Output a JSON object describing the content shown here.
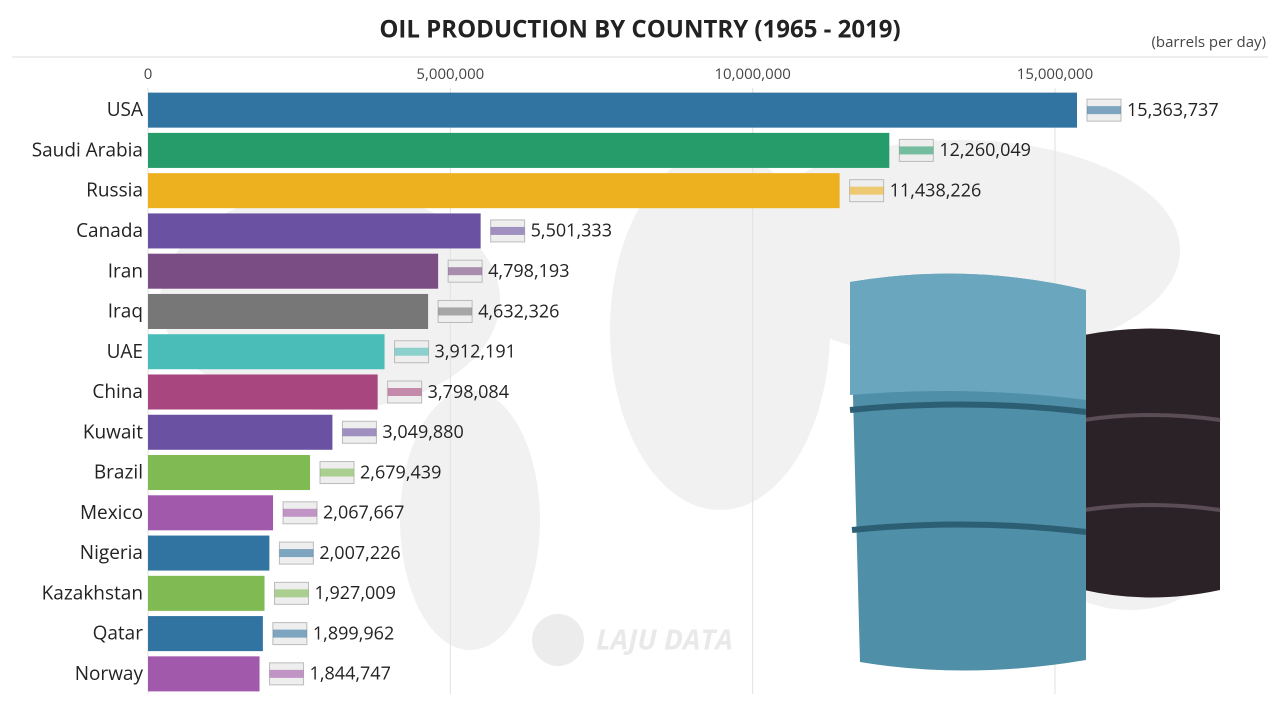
{
  "chart_data": {
    "type": "bar",
    "orientation": "horizontal",
    "title": "OIL PRODUCTION BY COUNTRY (1965 - 2019)",
    "subtitle": "(barrels per day)",
    "watermark": "LAJU DATA",
    "categories": [
      "USA",
      "Saudi Arabia",
      "Russia",
      "Canada",
      "Iran",
      "Iraq",
      "UAE",
      "China",
      "Kuwait",
      "Brazil",
      "Mexico",
      "Nigeria",
      "Kazakhstan",
      "Qatar",
      "Norway"
    ],
    "values": [
      15363737,
      12260049,
      11438226,
      5501333,
      4798193,
      4632326,
      3912191,
      3798084,
      3049880,
      2679439,
      2067667,
      2007226,
      1927009,
      1899962,
      1844747
    ],
    "value_labels": [
      "15,363,737",
      "12,260,049",
      "11,438,226",
      "5,501,333",
      "4,798,193",
      "4,632,326",
      "3,912,191",
      "3,798,084",
      "3,049,880",
      "2,679,439",
      "2,067,667",
      "2,007,226",
      "1,927,009",
      "1,899,962",
      "1,844,747"
    ],
    "colors": [
      "#3274a1",
      "#259c6a",
      "#edb120",
      "#6b51a1",
      "#7a4d84",
      "#777777",
      "#4bbdb8",
      "#a8477f",
      "#6b51a1",
      "#7fba52",
      "#a15aab",
      "#3274a1",
      "#7fba52",
      "#3274a1",
      "#a15aab"
    ],
    "xlim": [
      0,
      18500000
    ],
    "xticks": [
      0,
      {
        "value": 5000000,
        "label": "5,000,000"
      },
      {
        "value": 10000000,
        "label": "10,000,000"
      },
      {
        "value": 15000000,
        "label": "15,000,000"
      }
    ],
    "grid": true
  }
}
